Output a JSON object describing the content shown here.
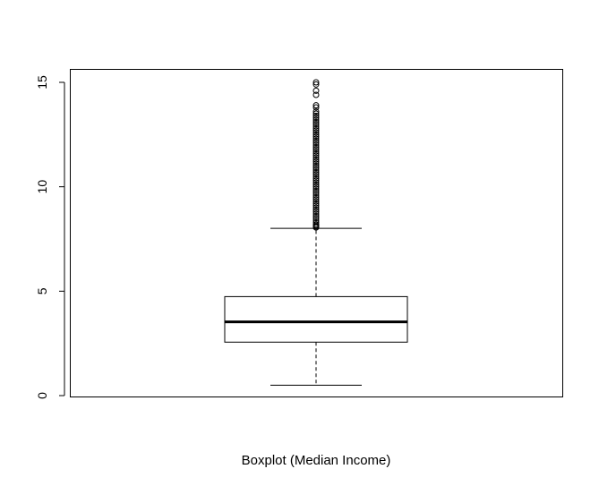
{
  "chart_data": {
    "type": "boxplot",
    "title": "",
    "xlabel": "Boxplot (Median Income)",
    "ylabel": "",
    "ylim": [
      0,
      15
    ],
    "yticks": [
      0,
      5,
      10,
      15
    ],
    "grid": false,
    "legend": "none",
    "series": [
      {
        "min": 0.5,
        "q1": 2.56,
        "median": 3.53,
        "q3": 4.74,
        "max": 8.01,
        "outliers": [
          8.05,
          8.1,
          8.15,
          8.2,
          8.3,
          8.4,
          8.5,
          8.6,
          8.7,
          8.8,
          8.9,
          9.0,
          9.1,
          9.2,
          9.3,
          9.4,
          9.5,
          9.6,
          9.7,
          9.8,
          9.9,
          10.0,
          10.1,
          10.2,
          10.3,
          10.4,
          10.5,
          10.6,
          10.7,
          10.8,
          10.9,
          11.0,
          11.1,
          11.2,
          11.3,
          11.4,
          11.5,
          11.6,
          11.7,
          11.8,
          11.9,
          12.0,
          12.1,
          12.2,
          12.3,
          12.4,
          12.5,
          12.6,
          12.7,
          12.8,
          12.9,
          13.0,
          13.1,
          13.2,
          13.3,
          13.4,
          13.5,
          13.6,
          13.8,
          13.9,
          14.4,
          14.6,
          14.9,
          15.0
        ]
      }
    ]
  }
}
